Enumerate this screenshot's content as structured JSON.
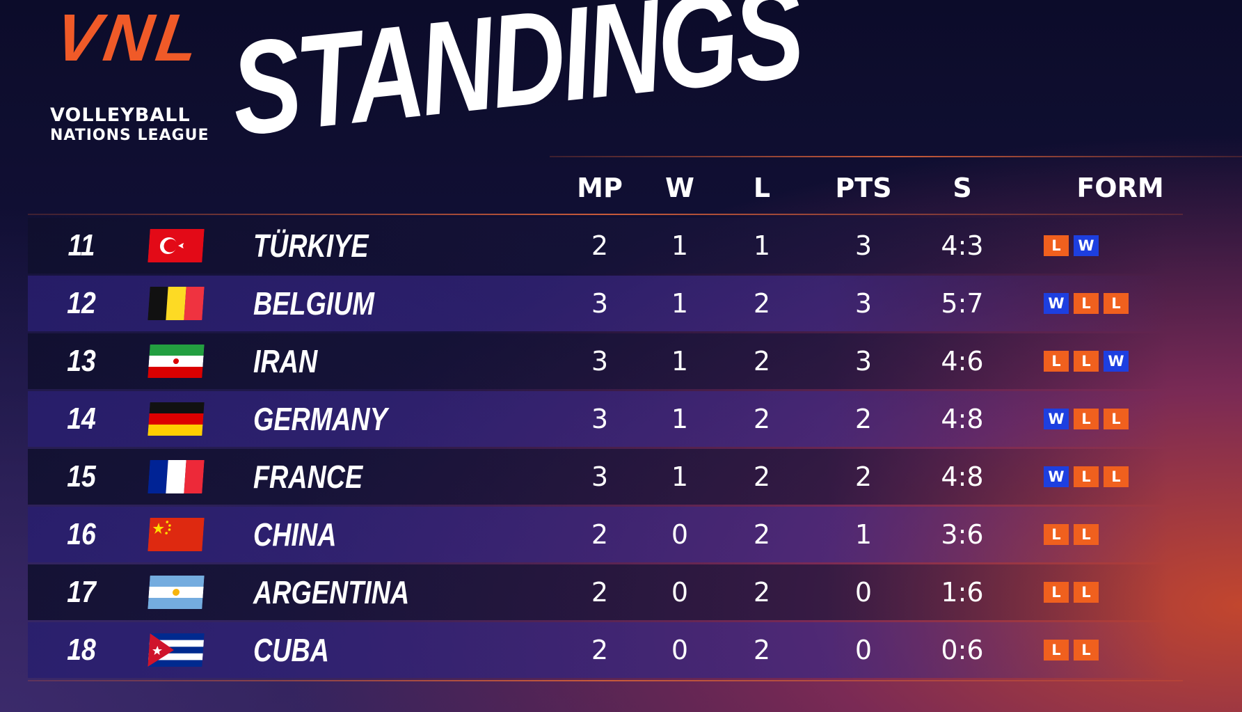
{
  "logo": {
    "mark": "VNL",
    "line1": "VOLLEYBALL",
    "line2": "NATIONS LEAGUE"
  },
  "header": {
    "title": "STANDINGS"
  },
  "form_colors": {
    "W": "#1d3fe0",
    "L": "#f0601e"
  },
  "table": {
    "columns": [
      "MP",
      "W",
      "L",
      "PTS",
      "S",
      "FORM"
    ],
    "rows": [
      {
        "rank": 11,
        "team": "TÜRKIYE",
        "mp": 2,
        "w": 1,
        "l": 1,
        "pts": 3,
        "s": "4:3",
        "form": [
          "L",
          "W"
        ]
      },
      {
        "rank": 12,
        "team": "BELGIUM",
        "mp": 3,
        "w": 1,
        "l": 2,
        "pts": 3,
        "s": "5:7",
        "form": [
          "W",
          "L",
          "L"
        ]
      },
      {
        "rank": 13,
        "team": "IRAN",
        "mp": 3,
        "w": 1,
        "l": 2,
        "pts": 3,
        "s": "4:6",
        "form": [
          "L",
          "L",
          "W"
        ]
      },
      {
        "rank": 14,
        "team": "GERMANY",
        "mp": 3,
        "w": 1,
        "l": 2,
        "pts": 2,
        "s": "4:8",
        "form": [
          "W",
          "L",
          "L"
        ]
      },
      {
        "rank": 15,
        "team": "FRANCE",
        "mp": 3,
        "w": 1,
        "l": 2,
        "pts": 2,
        "s": "4:8",
        "form": [
          "W",
          "L",
          "L"
        ]
      },
      {
        "rank": 16,
        "team": "CHINA",
        "mp": 2,
        "w": 0,
        "l": 2,
        "pts": 1,
        "s": "3:6",
        "form": [
          "L",
          "L"
        ]
      },
      {
        "rank": 17,
        "team": "ARGENTINA",
        "mp": 2,
        "w": 0,
        "l": 2,
        "pts": 0,
        "s": "1:6",
        "form": [
          "L",
          "L"
        ]
      },
      {
        "rank": 18,
        "team": "CUBA",
        "mp": 2,
        "w": 0,
        "l": 2,
        "pts": 0,
        "s": "0:6",
        "form": [
          "L",
          "L"
        ]
      }
    ]
  }
}
